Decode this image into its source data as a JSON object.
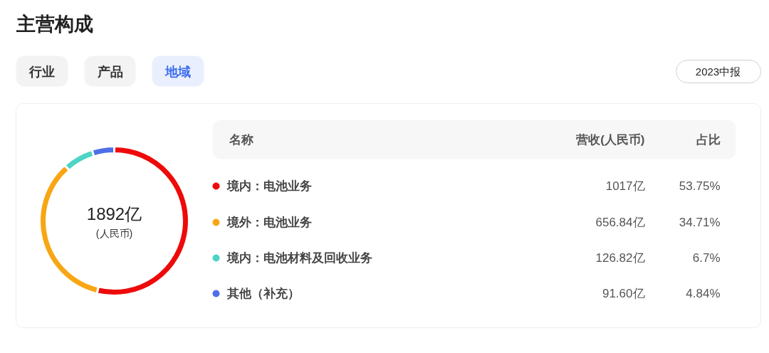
{
  "chart_data": {
    "type": "donut",
    "title": "主营构成",
    "categories": [
      "境内：电池业务",
      "境外：电池业务",
      "境内：电池材料及回收业务",
      "其他（补充）"
    ],
    "values": [
      1017,
      656.84,
      126.82,
      91.6
    ],
    "colors": [
      "#ee0a0a",
      "#f7a614",
      "#4dd4c4",
      "#4f6fe8"
    ],
    "value_labels": [
      "1017亿",
      "656.84亿",
      "126.82亿",
      "91.60亿"
    ],
    "legend": "right",
    "annotations": [
      "行业",
      "产品",
      "地域",
      "2023中报",
      "名称",
      "营收(人民币)",
      "占比",
      "1892亿",
      "(人民币)",
      "53.75%",
      "34.71%",
      "6.7%",
      "4.84%"
    ]
  }
}
